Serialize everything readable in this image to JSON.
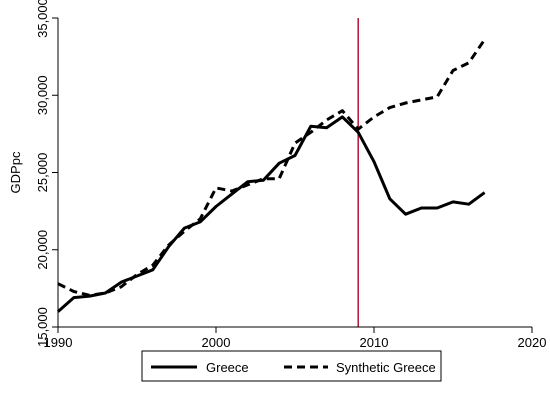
{
  "chart_data": {
    "type": "line",
    "title": "",
    "xlabel": "",
    "ylabel": "GDPpc",
    "xlim": [
      1990,
      2020
    ],
    "ylim": [
      15000,
      35000
    ],
    "x_ticks": [
      1990,
      2000,
      2010,
      2020
    ],
    "x_tick_labels": [
      "1990",
      "2000",
      "2010",
      "2020"
    ],
    "y_ticks": [
      15000,
      20000,
      25000,
      30000,
      35000
    ],
    "y_tick_labels": [
      "15,000",
      "20,000",
      "25,000",
      "30,000",
      "35,000"
    ],
    "grid": false,
    "legend": "bottom",
    "reference_line": {
      "x": 2009,
      "color": "#b5123c"
    },
    "series": [
      {
        "name": "Greece",
        "style": "solid",
        "color": "#000000",
        "x": [
          1990,
          1991,
          1992,
          1993,
          1994,
          1995,
          1996,
          1997,
          1998,
          1999,
          2000,
          2001,
          2002,
          2003,
          2004,
          2005,
          2006,
          2007,
          2008,
          2009,
          2010,
          2011,
          2012,
          2013,
          2014,
          2015,
          2016,
          2017
        ],
        "values": [
          16000,
          16900,
          17000,
          17200,
          17900,
          18300,
          18700,
          20200,
          21400,
          21800,
          22800,
          23600,
          24400,
          24500,
          25600,
          26100,
          28000,
          27900,
          28600,
          27600,
          25700,
          23300,
          22300,
          22700,
          22700,
          23100,
          22950,
          23700
        ]
      },
      {
        "name": "Synthetic Greece",
        "style": "dashed",
        "color": "#000000",
        "x": [
          1990,
          1991,
          1992,
          1993,
          1994,
          1995,
          1996,
          1997,
          1998,
          1999,
          2000,
          2001,
          2002,
          2003,
          2004,
          2005,
          2006,
          2007,
          2008,
          2009,
          2010,
          2011,
          2012,
          2013,
          2014,
          2015,
          2016,
          2017
        ],
        "values": [
          17800,
          17300,
          17050,
          17200,
          17600,
          18400,
          19000,
          20300,
          21200,
          22000,
          24000,
          23800,
          24200,
          24600,
          24600,
          26900,
          27600,
          28400,
          29000,
          27800,
          28600,
          29200,
          29500,
          29700,
          29900,
          31600,
          32100,
          33600
        ]
      }
    ]
  }
}
